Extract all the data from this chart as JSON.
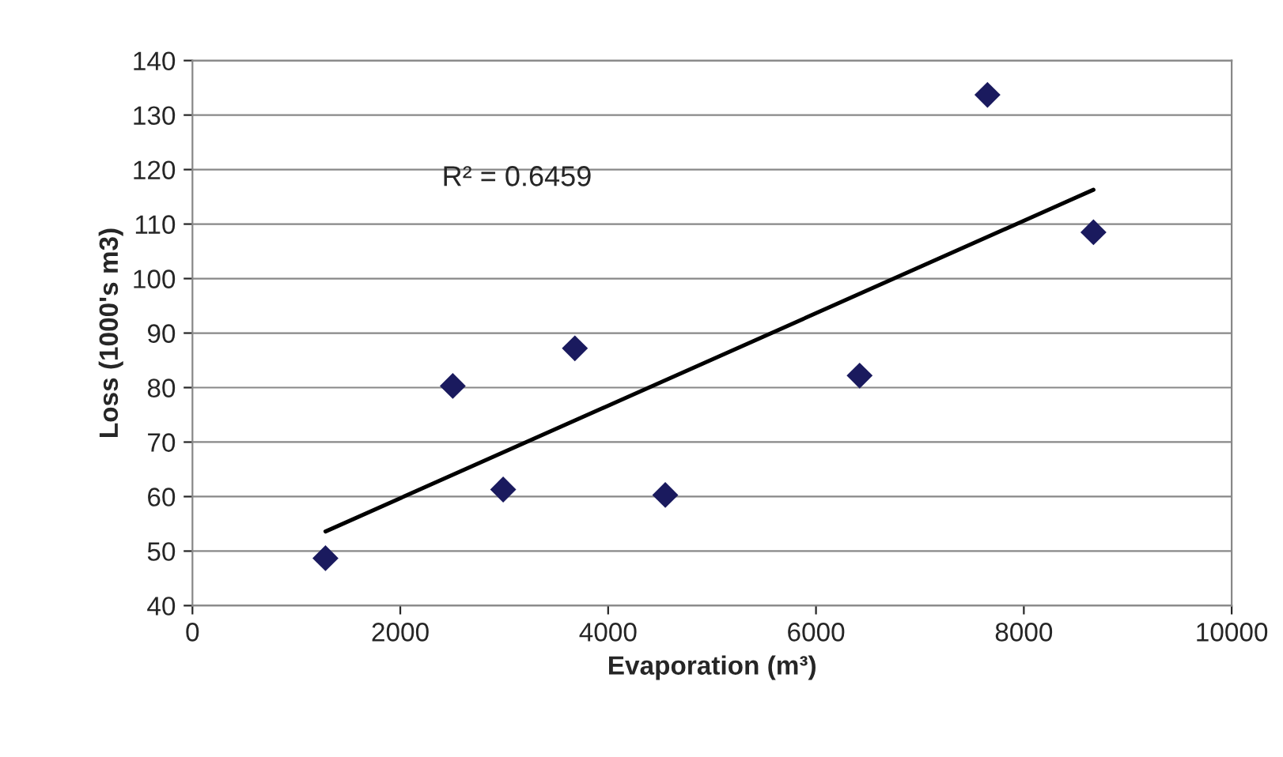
{
  "chart_data": {
    "type": "scatter",
    "xlabel": "Evaporation (m³)",
    "ylabel": "Loss (1000's m3)",
    "xlim": [
      0,
      10000
    ],
    "xticks": [
      0,
      2000,
      4000,
      6000,
      8000,
      10000
    ],
    "ylim": [
      40,
      140
    ],
    "yticks": [
      40,
      50,
      60,
      70,
      80,
      90,
      100,
      110,
      120,
      130,
      140
    ],
    "grid": "y",
    "marker": "diamond",
    "legend": false,
    "x": [
      1280,
      2505,
      2990,
      3680,
      4550,
      6420,
      7650,
      8670
    ],
    "series": [
      {
        "color": "#1a1a5e",
        "values": [
          48.7,
          80.3,
          61.3,
          87.2,
          60.3,
          82.2,
          133.7,
          108.5
        ]
      },
      {
        "type": "line",
        "color": "#000000",
        "x": [
          1280,
          8670
        ],
        "values": [
          53.6,
          116.3
        ],
        "marker": "none",
        "line_style": "solid"
      }
    ],
    "annotations": [
      "R² = 0.6459"
    ]
  }
}
